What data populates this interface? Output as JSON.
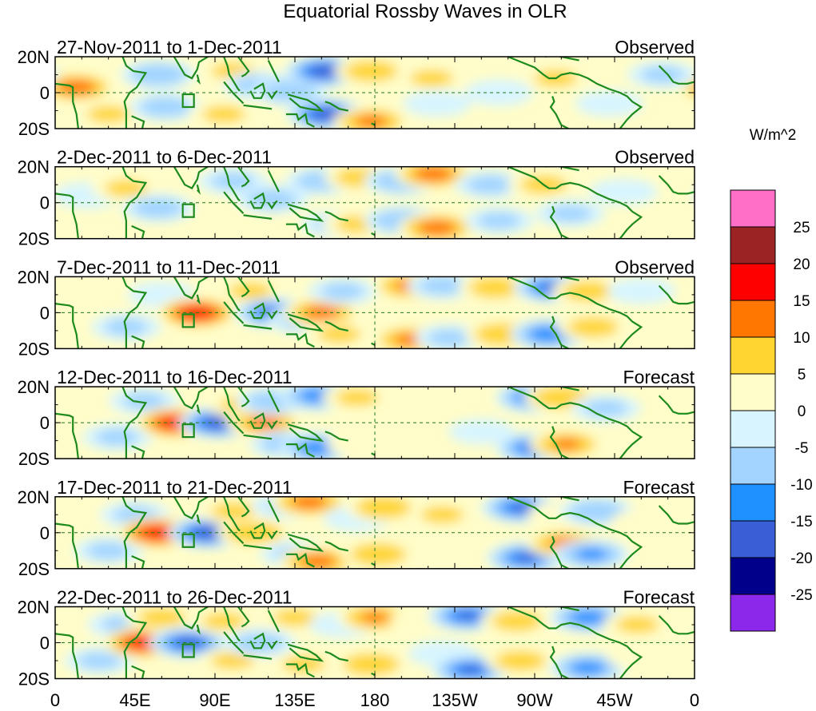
{
  "chart_data": {
    "type": "heatmap",
    "title": "Equatorial Rossby Waves in OLR",
    "colorbar": {
      "label": "W/m^2",
      "levels": [
        "25",
        "20",
        "15",
        "10",
        "5",
        "0",
        "-5",
        "-10",
        "-15",
        "-20",
        "-25"
      ],
      "colors": [
        "#ff6ec7",
        "#9b2323",
        "#ff0000",
        "#ff7700",
        "#ffd531",
        "#fffdc9",
        "#d8f5ff",
        "#a2d4ff",
        "#1f90ff",
        "#3a5ed6",
        "#00008b",
        "#8b28e9"
      ]
    },
    "x_ticks": [
      "0",
      "45E",
      "90E",
      "135E",
      "180",
      "135W",
      "90W",
      "45W",
      "0"
    ],
    "y_ticks": [
      "20N",
      "0",
      "20S"
    ],
    "xlim": [
      0,
      360
    ],
    "ylim": [
      -20,
      20
    ],
    "panels": [
      {
        "dates": "27-Nov-2011 to 1-Dec-2011",
        "status": "Observed",
        "anomalies": [
          {
            "lon": 12,
            "lat": 3,
            "value": 14
          },
          {
            "lon": 30,
            "lat": -12,
            "value": 6
          },
          {
            "lon": 58,
            "lat": 10,
            "value": -10
          },
          {
            "lon": 62,
            "lat": -8,
            "value": -8
          },
          {
            "lon": 100,
            "lat": 12,
            "value": 6
          },
          {
            "lon": 95,
            "lat": -12,
            "value": 6
          },
          {
            "lon": 115,
            "lat": 4,
            "value": -8
          },
          {
            "lon": 132,
            "lat": 1,
            "value": -10
          },
          {
            "lon": 152,
            "lat": 12,
            "value": -20
          },
          {
            "lon": 153,
            "lat": -12,
            "value": -20
          },
          {
            "lon": 178,
            "lat": 12,
            "value": 9
          },
          {
            "lon": 178,
            "lat": -16,
            "value": 12
          },
          {
            "lon": 212,
            "lat": 8,
            "value": 6
          },
          {
            "lon": 215,
            "lat": -6,
            "value": -5
          },
          {
            "lon": 250,
            "lat": 0,
            "value": -5
          },
          {
            "lon": 282,
            "lat": 8,
            "value": 6
          },
          {
            "lon": 312,
            "lat": -6,
            "value": -5
          },
          {
            "lon": 342,
            "lat": 10,
            "value": -6
          }
        ]
      },
      {
        "dates": "2-Dec-2011 to 6-Dec-2011",
        "status": "Observed",
        "anomalies": [
          {
            "lon": 18,
            "lat": 4,
            "value": -5
          },
          {
            "lon": 40,
            "lat": 8,
            "value": 6
          },
          {
            "lon": 58,
            "lat": -3,
            "value": -8
          },
          {
            "lon": 100,
            "lat": 12,
            "value": -6
          },
          {
            "lon": 98,
            "lat": -10,
            "value": 4
          },
          {
            "lon": 122,
            "lat": 2,
            "value": -8
          },
          {
            "lon": 150,
            "lat": 12,
            "value": -8
          },
          {
            "lon": 158,
            "lat": -12,
            "value": -6
          },
          {
            "lon": 172,
            "lat": 14,
            "value": 8
          },
          {
            "lon": 170,
            "lat": -12,
            "value": 6
          },
          {
            "lon": 195,
            "lat": 12,
            "value": -10
          },
          {
            "lon": 195,
            "lat": -10,
            "value": -10
          },
          {
            "lon": 213,
            "lat": 16,
            "value": 14
          },
          {
            "lon": 215,
            "lat": -14,
            "value": 14
          },
          {
            "lon": 245,
            "lat": 10,
            "value": -7
          },
          {
            "lon": 250,
            "lat": -10,
            "value": -6
          },
          {
            "lon": 275,
            "lat": 10,
            "value": 7
          },
          {
            "lon": 290,
            "lat": -6,
            "value": -6
          },
          {
            "lon": 320,
            "lat": 6,
            "value": -5
          },
          {
            "lon": 340,
            "lat": -8,
            "value": 5
          }
        ]
      },
      {
        "dates": "7-Dec-2011 to 11-Dec-2011",
        "status": "Observed",
        "anomalies": [
          {
            "lon": 20,
            "lat": 8,
            "value": 4
          },
          {
            "lon": 40,
            "lat": -8,
            "value": -6
          },
          {
            "lon": 60,
            "lat": 10,
            "value": -5
          },
          {
            "lon": 80,
            "lat": 0,
            "value": 20
          },
          {
            "lon": 110,
            "lat": 12,
            "value": 6
          },
          {
            "lon": 123,
            "lat": 0,
            "value": -16
          },
          {
            "lon": 140,
            "lat": -4,
            "value": -8
          },
          {
            "lon": 150,
            "lat": 0,
            "value": 13
          },
          {
            "lon": 162,
            "lat": 12,
            "value": -6
          },
          {
            "lon": 160,
            "lat": -12,
            "value": 6
          },
          {
            "lon": 200,
            "lat": 15,
            "value": 12
          },
          {
            "lon": 200,
            "lat": -15,
            "value": 12
          },
          {
            "lon": 218,
            "lat": 15,
            "value": -7
          },
          {
            "lon": 222,
            "lat": -14,
            "value": -6
          },
          {
            "lon": 248,
            "lat": 14,
            "value": 9
          },
          {
            "lon": 252,
            "lat": -12,
            "value": 10
          },
          {
            "lon": 280,
            "lat": 14,
            "value": -16
          },
          {
            "lon": 278,
            "lat": -12,
            "value": -15
          },
          {
            "lon": 300,
            "lat": 12,
            "value": 8
          },
          {
            "lon": 303,
            "lat": -8,
            "value": 8
          },
          {
            "lon": 330,
            "lat": 12,
            "value": -5
          }
        ]
      },
      {
        "dates": "12-Dec-2011 to 16-Dec-2011",
        "status": "Forecast",
        "anomalies": [
          {
            "lon": 20,
            "lat": 10,
            "value": 5
          },
          {
            "lon": 35,
            "lat": -8,
            "value": -6
          },
          {
            "lon": 50,
            "lat": 12,
            "value": -6
          },
          {
            "lon": 68,
            "lat": 0,
            "value": 20
          },
          {
            "lon": 92,
            "lat": 0,
            "value": -20
          },
          {
            "lon": 105,
            "lat": 10,
            "value": 6
          },
          {
            "lon": 118,
            "lat": 0,
            "value": 12
          },
          {
            "lon": 122,
            "lat": 12,
            "value": -8
          },
          {
            "lon": 130,
            "lat": -12,
            "value": -8
          },
          {
            "lon": 148,
            "lat": 15,
            "value": -14
          },
          {
            "lon": 148,
            "lat": -14,
            "value": -14
          },
          {
            "lon": 170,
            "lat": 14,
            "value": 6
          },
          {
            "lon": 172,
            "lat": -12,
            "value": 5
          },
          {
            "lon": 205,
            "lat": 10,
            "value": 5
          },
          {
            "lon": 240,
            "lat": -5,
            "value": -4
          },
          {
            "lon": 270,
            "lat": 14,
            "value": -16
          },
          {
            "lon": 270,
            "lat": -14,
            "value": -16
          },
          {
            "lon": 285,
            "lat": 14,
            "value": 10
          },
          {
            "lon": 288,
            "lat": -12,
            "value": 11
          },
          {
            "lon": 310,
            "lat": 8,
            "value": -6
          },
          {
            "lon": 335,
            "lat": -8,
            "value": 4
          }
        ]
      },
      {
        "dates": "17-Dec-2011 to 21-Dec-2011",
        "status": "Forecast",
        "anomalies": [
          {
            "lon": 18,
            "lat": 10,
            "value": 5
          },
          {
            "lon": 30,
            "lat": -10,
            "value": -6
          },
          {
            "lon": 45,
            "lat": 10,
            "value": -6
          },
          {
            "lon": 58,
            "lat": 0,
            "value": 20
          },
          {
            "lon": 86,
            "lat": 0,
            "value": -20
          },
          {
            "lon": 100,
            "lat": 12,
            "value": 6
          },
          {
            "lon": 112,
            "lat": 0,
            "value": 10
          },
          {
            "lon": 130,
            "lat": 15,
            "value": -6
          },
          {
            "lon": 135,
            "lat": -12,
            "value": -6
          },
          {
            "lon": 143,
            "lat": 17,
            "value": 13
          },
          {
            "lon": 148,
            "lat": -16,
            "value": 13
          },
          {
            "lon": 170,
            "lat": 8,
            "value": -5
          },
          {
            "lon": 185,
            "lat": 14,
            "value": 10
          },
          {
            "lon": 182,
            "lat": -12,
            "value": 10
          },
          {
            "lon": 218,
            "lat": 10,
            "value": 6
          },
          {
            "lon": 215,
            "lat": -6,
            "value": 5
          },
          {
            "lon": 262,
            "lat": 14,
            "value": -16
          },
          {
            "lon": 265,
            "lat": -14,
            "value": -16
          },
          {
            "lon": 287,
            "lat": -6,
            "value": 12
          },
          {
            "lon": 285,
            "lat": 10,
            "value": 5
          },
          {
            "lon": 305,
            "lat": 12,
            "value": -10
          },
          {
            "lon": 302,
            "lat": -12,
            "value": -12
          },
          {
            "lon": 332,
            "lat": 6,
            "value": 5
          }
        ]
      },
      {
        "dates": "22-Dec-2011 to 26-Dec-2011",
        "status": "Forecast",
        "anomalies": [
          {
            "lon": 15,
            "lat": 8,
            "value": 5
          },
          {
            "lon": 25,
            "lat": -10,
            "value": -6
          },
          {
            "lon": 38,
            "lat": 10,
            "value": -6
          },
          {
            "lon": 50,
            "lat": 0,
            "value": 20
          },
          {
            "lon": 60,
            "lat": 14,
            "value": 7
          },
          {
            "lon": 75,
            "lat": 0,
            "value": -18
          },
          {
            "lon": 95,
            "lat": 12,
            "value": 6
          },
          {
            "lon": 100,
            "lat": -10,
            "value": 6
          },
          {
            "lon": 115,
            "lat": 0,
            "value": -8
          },
          {
            "lon": 135,
            "lat": 14,
            "value": 6
          },
          {
            "lon": 140,
            "lat": -12,
            "value": 6
          },
          {
            "lon": 162,
            "lat": 10,
            "value": -5
          },
          {
            "lon": 180,
            "lat": 14,
            "value": 11
          },
          {
            "lon": 178,
            "lat": -12,
            "value": 10
          },
          {
            "lon": 208,
            "lat": 12,
            "value": 5
          },
          {
            "lon": 218,
            "lat": -6,
            "value": -5
          },
          {
            "lon": 232,
            "lat": 15,
            "value": -16
          },
          {
            "lon": 234,
            "lat": -15,
            "value": -16
          },
          {
            "lon": 260,
            "lat": 12,
            "value": 8
          },
          {
            "lon": 262,
            "lat": -10,
            "value": 8
          },
          {
            "lon": 300,
            "lat": 14,
            "value": -14
          },
          {
            "lon": 300,
            "lat": -14,
            "value": -13
          },
          {
            "lon": 328,
            "lat": 10,
            "value": 6
          },
          {
            "lon": 330,
            "lat": -8,
            "value": 5
          }
        ]
      }
    ]
  }
}
